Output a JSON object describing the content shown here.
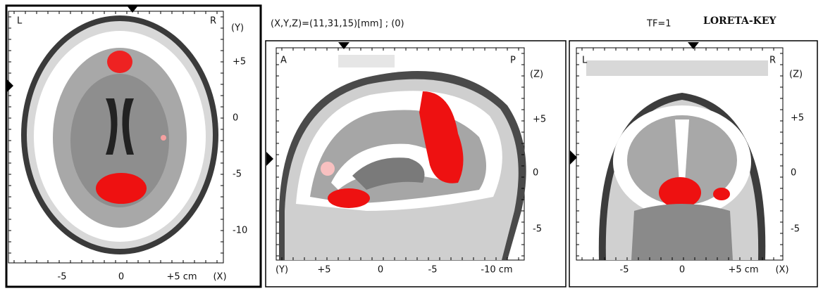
{
  "header": {
    "coordinates": "(X,Y,Z)=(11,31,15)[mm] ; (0)",
    "tf": "TF=1",
    "title": "LORETA-KEY"
  },
  "panels": [
    {
      "corner_left": "L",
      "corner_right": "R",
      "axis_label": "(Y)",
      "right_ticks": [
        "+5",
        "0",
        "-5",
        "-10"
      ],
      "bottom_ticks": [
        "-5",
        "0",
        "+5 cm",
        "(X)"
      ]
    },
    {
      "corner_left": "A",
      "corner_right": "P",
      "axis_label": "(Z)",
      "right_ticks": [
        "+5",
        "0",
        "-5"
      ],
      "bottom_ticks": [
        "(Y)",
        "+5",
        "0",
        "-5",
        "-10 cm"
      ]
    },
    {
      "corner_left": "L",
      "corner_right": "R",
      "axis_label": "(Z)",
      "right_ticks": [
        "+5",
        "0",
        "-5"
      ],
      "bottom_ticks": [
        "-5",
        "0",
        "+5 cm",
        "(X)"
      ]
    }
  ]
}
